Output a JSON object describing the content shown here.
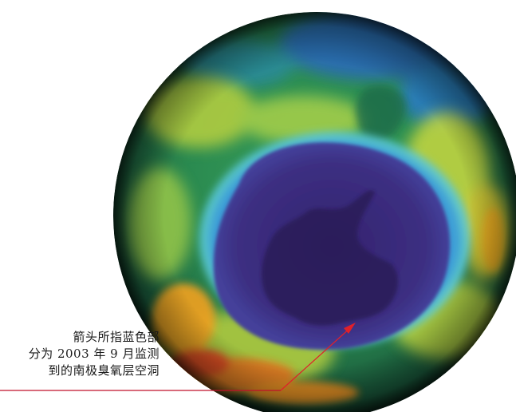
{
  "caption": {
    "lines": [
      "箭头所指蓝色部",
      "分为 2003 年 9 月监测",
      "到的南极臭氧层空洞"
    ]
  },
  "colors": {
    "arrow": "#e0202a",
    "leader_line": "#c0102a",
    "ozone_hole": "#3a2a7a",
    "antarctica": "#2a1f5a",
    "hole_rim": "#4ad0e8",
    "mid_ozone": "#1a9a6a",
    "high_ozone": "#e8c020",
    "peak_ozone": "#e03020"
  }
}
